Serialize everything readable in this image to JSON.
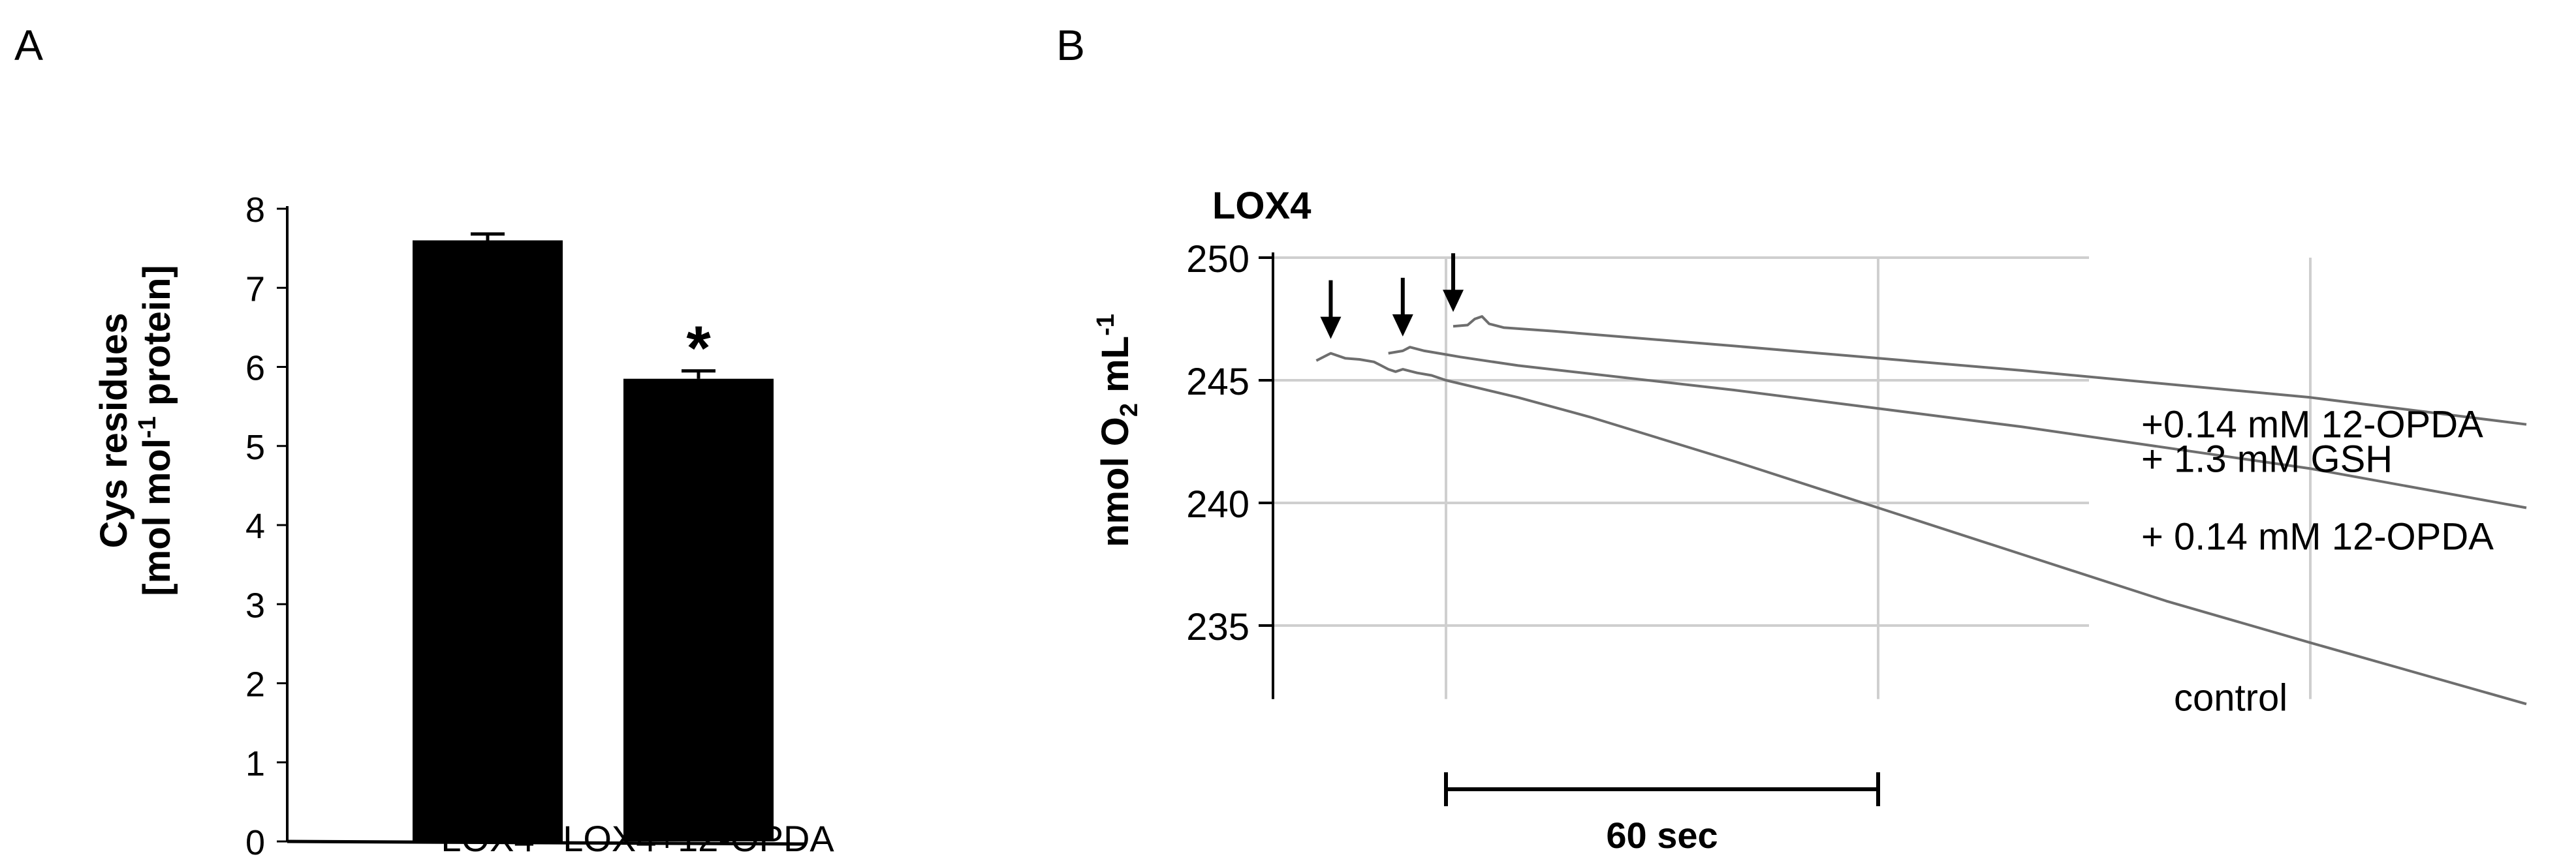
{
  "colors": {
    "bar": "#000000",
    "trace": "#6e6e6e",
    "grid": "#cfcfcf",
    "axis": "#000000",
    "text": "#000000"
  },
  "panels": {
    "a": {
      "letter": "A"
    },
    "b": {
      "letter": "B"
    }
  },
  "chart_data": [
    {
      "type": "bar",
      "title": "",
      "ylabel_line1": "Cys residues",
      "ylabel_line2_pre": "[mol mol",
      "ylabel_line2_sup": "-1",
      "ylabel_line2_post": " protein]",
      "categories": [
        "LOX4",
        "LOX4+12-OPDA"
      ],
      "values": [
        7.6,
        5.85
      ],
      "errors": [
        0.08,
        0.1
      ],
      "annotations": [
        {
          "category": "LOX4+12-OPDA",
          "text": "*"
        }
      ],
      "ylim": [
        0,
        8
      ],
      "yticks": [
        "0",
        "1",
        "2",
        "3",
        "4",
        "5",
        "6",
        "7",
        "8"
      ],
      "grid": false,
      "legend": "none"
    },
    {
      "type": "line",
      "title": "LOX4",
      "ylabel_pre": "nmol O",
      "ylabel_sub": "2",
      "ylabel_mid": " mL",
      "ylabel_sup": "-1",
      "ylim": [
        232,
        250
      ],
      "yticks": [
        "235",
        "240",
        "245",
        "250"
      ],
      "xunit": "sec",
      "xlim": [
        -24,
        150
      ],
      "grid": true,
      "scalebar": {
        "from": 0,
        "to": 60,
        "label": "60 sec"
      },
      "series": [
        {
          "name": "+0.14 mM 12-OPDA",
          "label_lines": [
            "+0.14 mM 12-OPDA"
          ],
          "x": [
            1,
            3,
            4,
            5,
            6,
            8,
            15,
            40,
            80,
            120,
            150
          ],
          "y": [
            247.2,
            247.25,
            247.5,
            247.6,
            247.3,
            247.15,
            247.0,
            246.4,
            245.4,
            244.3,
            243.2
          ],
          "arrow_x": 1
        },
        {
          "name": "+ 1.3 mM GSH + 0.14 mM 12-OPDA",
          "label_lines": [
            "+ 1.3 mM GSH",
            "+ 0.14 mM 12-OPDA"
          ],
          "x": [
            -8,
            -6,
            -5,
            -3,
            0,
            2,
            10,
            40,
            80,
            120,
            150
          ],
          "y": [
            246.1,
            246.2,
            246.35,
            246.2,
            246.05,
            245.95,
            245.6,
            244.6,
            243.1,
            241.4,
            239.8
          ],
          "arrow_x": -6
        },
        {
          "name": "control",
          "label_lines": [
            "control"
          ],
          "x": [
            -18,
            -16,
            -14,
            -12,
            -10,
            -9,
            -8,
            -7,
            -6,
            -4,
            -2,
            0,
            10,
            20,
            40,
            60,
            80,
            100,
            120,
            150
          ],
          "y": [
            245.8,
            246.1,
            245.9,
            245.85,
            245.75,
            245.6,
            245.45,
            245.35,
            245.45,
            245.3,
            245.2,
            245.0,
            244.3,
            243.5,
            241.7,
            239.8,
            237.9,
            236.0,
            234.3,
            231.8
          ],
          "arrow_x": -16
        }
      ],
      "legend": "right, beside line ends"
    }
  ]
}
